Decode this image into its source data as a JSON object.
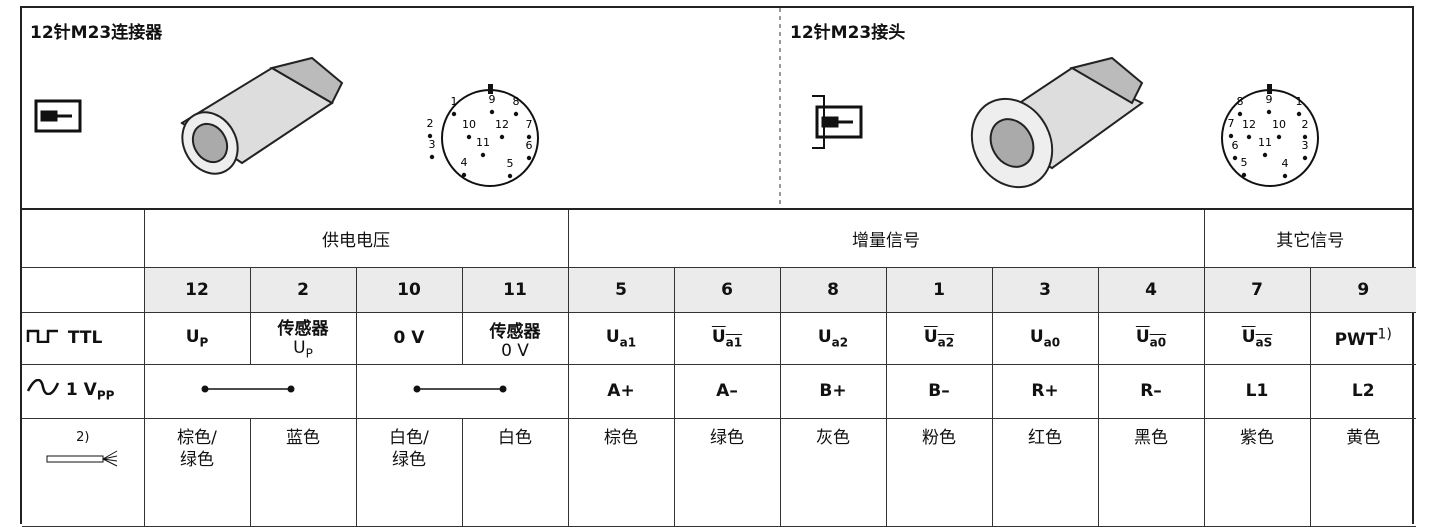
{
  "connector": {
    "title": "12针M23连接器",
    "pins": [
      "1",
      "9",
      "8",
      "2",
      "10",
      "12",
      "7",
      "3",
      "11",
      "6",
      "4",
      "5"
    ]
  },
  "coupling": {
    "title": "12针M23接头",
    "pins": [
      "8",
      "9",
      "1",
      "7",
      "12",
      "10",
      "2",
      "6",
      "11",
      "3",
      "5",
      "4"
    ]
  },
  "table": {
    "groups": [
      "供电电压",
      "增量信号",
      "其它信号"
    ],
    "pins": [
      "12",
      "2",
      "10",
      "11",
      "5",
      "6",
      "8",
      "1",
      "3",
      "4",
      "7",
      "9"
    ],
    "ttl_label": "TTL",
    "vpp_label": "1 V",
    "vpp_sub": "PP",
    "ttl": [
      {
        "text": "U",
        "sub": "P"
      },
      {
        "text": "传感器",
        "line2": "U",
        "line2_sub": "P"
      },
      {
        "text": "0 V"
      },
      {
        "text": "传感器",
        "line2": "0 V"
      },
      {
        "text": "U",
        "sub": "a1"
      },
      {
        "text": "U",
        "sub": "a1",
        "bar": true
      },
      {
        "text": "U",
        "sub": "a2"
      },
      {
        "text": "U",
        "sub": "a2",
        "bar": true
      },
      {
        "text": "U",
        "sub": "a0"
      },
      {
        "text": "U",
        "sub": "a0",
        "bar": true
      },
      {
        "text": "U",
        "sub": "aS",
        "bar": true
      },
      {
        "text": "PWT",
        "sup": "1)"
      }
    ],
    "vpp": [
      "A+",
      "A–",
      "B+",
      "B–",
      "R+",
      "R–",
      "L1",
      "L2"
    ],
    "wire_note": "2)",
    "wires": [
      [
        "棕色/",
        "绿色"
      ],
      [
        "蓝色"
      ],
      [
        "白色/",
        "绿色"
      ],
      [
        "白色"
      ],
      [
        "棕色"
      ],
      [
        "绿色"
      ],
      [
        "灰色"
      ],
      [
        "粉色"
      ],
      [
        "红色"
      ],
      [
        "黑色"
      ],
      [
        "紫色"
      ],
      [
        "黄色"
      ]
    ]
  }
}
